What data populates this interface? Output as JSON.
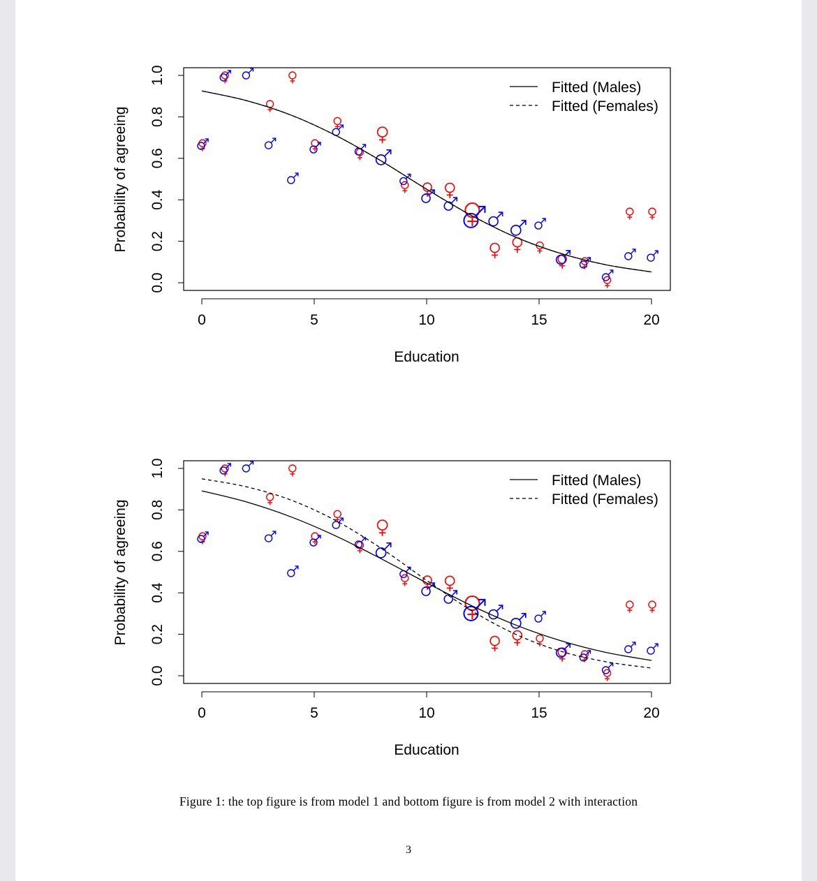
{
  "caption": "Figure 1: the top figure is from model 1 and bottom figure is from model 2 with interaction",
  "page_number": "3",
  "colors": {
    "male": "#0000ff",
    "female": "#ff0000",
    "fitted": "#000000"
  },
  "chart_data": [
    {
      "type": "scatter",
      "xlabel": "Education",
      "ylabel": "Probability of agreeing",
      "xlim": [
        0,
        20
      ],
      "ylim": [
        0,
        1
      ],
      "xticks": [
        "0",
        "5",
        "10",
        "15",
        "20"
      ],
      "yticks": [
        "0.0",
        "0.2",
        "0.4",
        "0.6",
        "0.8",
        "1.0"
      ],
      "legend": {
        "position": "top-right",
        "entries": [
          "Fitted (Males)",
          "Fitted (Females)"
        ]
      },
      "points": {
        "x": [
          0,
          1,
          2,
          3,
          4,
          5,
          6,
          7,
          8,
          9,
          10,
          11,
          12,
          13,
          14,
          15,
          16,
          17,
          18,
          19,
          20
        ],
        "male": [
          0.66,
          0.99,
          1.0,
          0.663,
          0.495,
          0.643,
          0.727,
          0.633,
          0.593,
          0.49,
          0.407,
          0.37,
          0.3,
          0.296,
          0.253,
          0.276,
          0.111,
          0.088,
          0.027,
          0.128,
          0.121
        ],
        "male_relative_size": [
          1,
          1,
          1,
          1,
          1,
          1,
          1,
          1,
          1.4,
          1,
          1.2,
          1.2,
          2,
          1.3,
          1.4,
          1,
          1.3,
          1,
          1,
          1,
          1
        ],
        "female": [
          0.673,
          1.0,
          null,
          0.862,
          1.0,
          0.673,
          0.78,
          0.63,
          0.727,
          0.471,
          0.461,
          0.458,
          0.35,
          0.168,
          0.195,
          0.18,
          0.114,
          0.104,
          0.013,
          0.343,
          0.343
        ],
        "female_relative_size": [
          1,
          1,
          1,
          1,
          1,
          1,
          1,
          1,
          1.4,
          1,
          1.2,
          1.3,
          2,
          1.3,
          1.3,
          1,
          1.2,
          1,
          1,
          1,
          1
        ]
      },
      "series": [
        {
          "name": "Fitted (Males)",
          "style": "solid",
          "x": [
            0,
            2,
            4,
            6,
            8,
            10,
            12,
            14,
            16,
            18,
            20
          ],
          "values": [
            0.925,
            0.878,
            0.807,
            0.708,
            0.586,
            0.451,
            0.324,
            0.218,
            0.14,
            0.086,
            0.052
          ]
        },
        {
          "name": "Fitted (Females)",
          "style": "dashed",
          "x": [
            0,
            2,
            4,
            6,
            8,
            10,
            12,
            14,
            16,
            18,
            20
          ],
          "values": [
            0.925,
            0.878,
            0.807,
            0.708,
            0.586,
            0.451,
            0.324,
            0.218,
            0.14,
            0.086,
            0.052
          ]
        }
      ]
    },
    {
      "type": "scatter",
      "xlabel": "Education",
      "ylabel": "Probability of agreeing",
      "xlim": [
        0,
        20
      ],
      "ylim": [
        0,
        1
      ],
      "xticks": [
        "0",
        "5",
        "10",
        "15",
        "20"
      ],
      "yticks": [
        "0.0",
        "0.2",
        "0.4",
        "0.6",
        "0.8",
        "1.0"
      ],
      "legend": {
        "position": "top-right",
        "entries": [
          "Fitted (Males)",
          "Fitted (Females)"
        ]
      },
      "points": {
        "x": [
          0,
          1,
          2,
          3,
          4,
          5,
          6,
          7,
          8,
          9,
          10,
          11,
          12,
          13,
          14,
          15,
          16,
          17,
          18,
          19,
          20
        ],
        "male": [
          0.66,
          0.99,
          1.0,
          0.663,
          0.495,
          0.643,
          0.727,
          0.633,
          0.593,
          0.49,
          0.407,
          0.37,
          0.3,
          0.296,
          0.253,
          0.276,
          0.111,
          0.088,
          0.027,
          0.128,
          0.121
        ],
        "male_relative_size": [
          1,
          1,
          1,
          1,
          1,
          1,
          1,
          1,
          1.4,
          1,
          1.2,
          1.2,
          2,
          1.3,
          1.4,
          1,
          1.3,
          1,
          1,
          1,
          1
        ],
        "female": [
          0.673,
          1.0,
          null,
          0.862,
          1.0,
          0.673,
          0.78,
          0.63,
          0.727,
          0.471,
          0.461,
          0.458,
          0.35,
          0.168,
          0.195,
          0.18,
          0.114,
          0.104,
          0.013,
          0.343,
          0.343
        ],
        "female_relative_size": [
          1,
          1,
          1,
          1,
          1,
          1,
          1,
          1,
          1.4,
          1,
          1.2,
          1.3,
          2,
          1.3,
          1.3,
          1,
          1.2,
          1,
          1,
          1,
          1
        ]
      },
      "series": [
        {
          "name": "Fitted (Males)",
          "style": "solid",
          "x": [
            0,
            2,
            4,
            6,
            8,
            10,
            12,
            14,
            16,
            18,
            20
          ],
          "values": [
            0.892,
            0.838,
            0.765,
            0.672,
            0.563,
            0.448,
            0.338,
            0.243,
            0.168,
            0.112,
            0.074
          ]
        },
        {
          "name": "Fitted (Females)",
          "style": "dashed",
          "x": [
            0,
            2,
            4,
            6,
            8,
            10,
            12,
            14,
            16,
            18,
            20
          ],
          "values": [
            0.95,
            0.911,
            0.846,
            0.746,
            0.613,
            0.46,
            0.314,
            0.198,
            0.117,
            0.067,
            0.037
          ]
        }
      ]
    }
  ]
}
